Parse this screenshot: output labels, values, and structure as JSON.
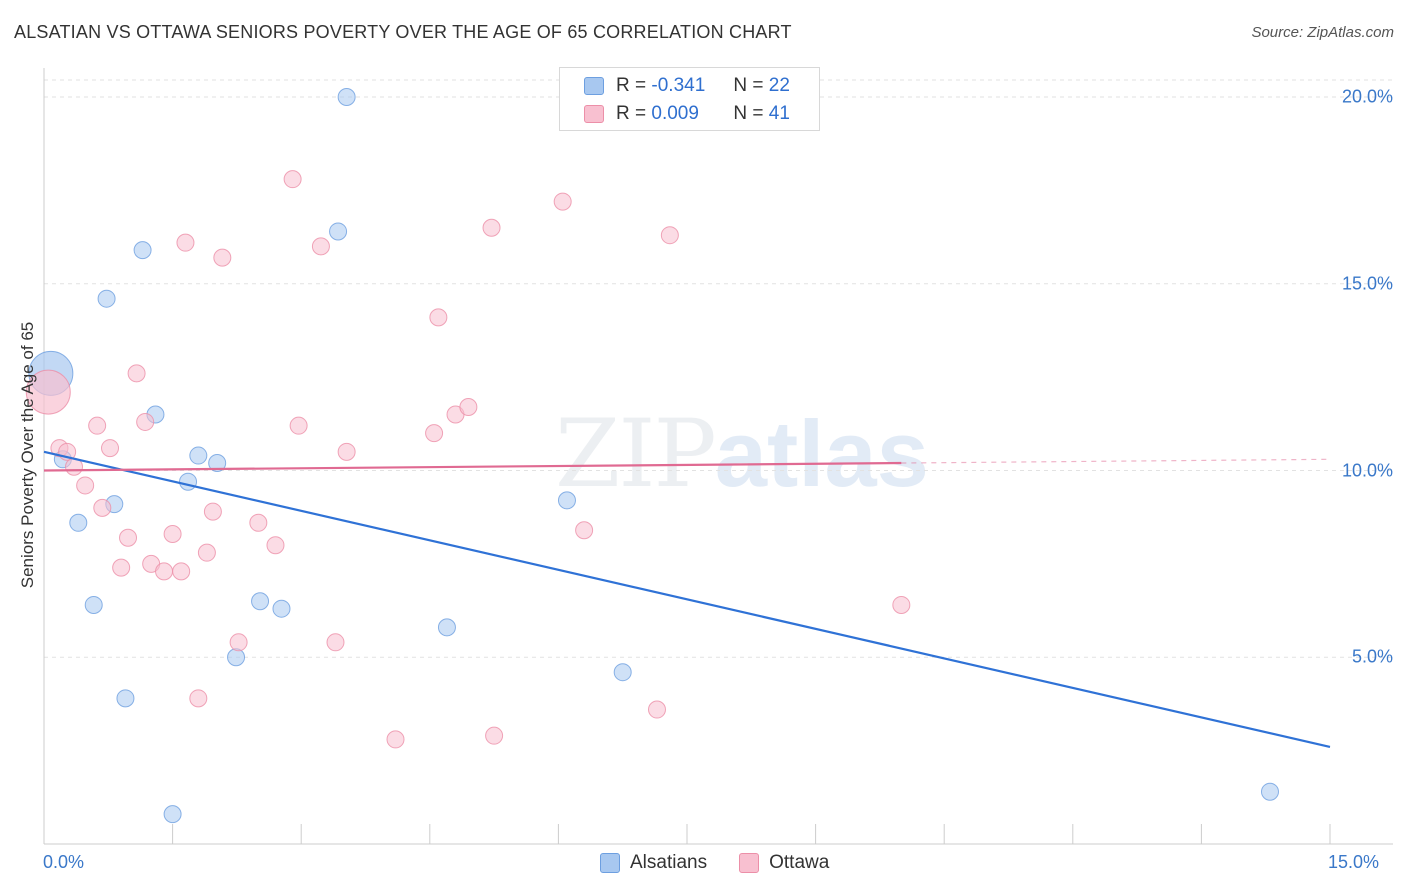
{
  "header": {
    "title": "ALSATIAN VS OTTAWA SENIORS POVERTY OVER THE AGE OF 65 CORRELATION CHART",
    "source": "Source: ZipAtlas.com"
  },
  "watermark": {
    "part1": "ZIP",
    "part2": "atlas"
  },
  "legend": {
    "rows": [
      {
        "r_label": "R = ",
        "r_value": "-0.341",
        "n_label": "N = ",
        "n_value": "22",
        "color": "#a8c8f0",
        "border": "#6d9fe0"
      },
      {
        "r_label": "R = ",
        "r_value": "0.009",
        "n_label": "N = ",
        "n_value": "41",
        "color": "#f8c0d0",
        "border": "#ec8fa8"
      }
    ]
  },
  "chart_data": {
    "type": "scatter",
    "title": "ALSATIAN VS OTTAWA SENIORS POVERTY OVER THE AGE OF 65 CORRELATION CHART",
    "xlabel": "",
    "ylabel": "Seniors Poverty Over the Age of 65",
    "xlim": [
      0,
      15
    ],
    "ylim": [
      0,
      20
    ],
    "x_tick_labels": [
      "0.0%",
      "15.0%"
    ],
    "y_ticks": [
      {
        "value": 5,
        "label": "5.0%"
      },
      {
        "value": 10,
        "label": "10.0%"
      },
      {
        "value": 15,
        "label": "15.0%"
      },
      {
        "value": 20,
        "label": "20.0%"
      }
    ],
    "series": [
      {
        "name": "Alsatians",
        "color": "#a8c8f0",
        "stroke": "#6d9fe0",
        "line_color": "#2f72d6",
        "trend": {
          "x0": 0.0,
          "y0": 10.5,
          "x1": 15.0,
          "y1": 2.6,
          "dashed_from": null
        },
        "points": [
          {
            "x": 0.08,
            "y": 12.6,
            "big": true
          },
          {
            "x": 0.22,
            "y": 10.3
          },
          {
            "x": 0.4,
            "y": 8.6
          },
          {
            "x": 0.58,
            "y": 6.4
          },
          {
            "x": 0.73,
            "y": 14.6
          },
          {
            "x": 0.82,
            "y": 9.1
          },
          {
            "x": 0.95,
            "y": 3.9
          },
          {
            "x": 1.15,
            "y": 15.9
          },
          {
            "x": 1.3,
            "y": 11.5
          },
          {
            "x": 1.5,
            "y": 0.8
          },
          {
            "x": 1.68,
            "y": 9.7
          },
          {
            "x": 1.8,
            "y": 10.4
          },
          {
            "x": 2.02,
            "y": 10.2
          },
          {
            "x": 2.24,
            "y": 5.0
          },
          {
            "x": 2.52,
            "y": 6.5
          },
          {
            "x": 2.77,
            "y": 6.3
          },
          {
            "x": 3.43,
            "y": 16.4
          },
          {
            "x": 3.53,
            "y": 20.0
          },
          {
            "x": 4.7,
            "y": 5.8
          },
          {
            "x": 6.1,
            "y": 9.2
          },
          {
            "x": 6.75,
            "y": 4.6
          },
          {
            "x": 14.3,
            "y": 1.4
          }
        ]
      },
      {
        "name": "Ottawa",
        "color": "#f8c0d0",
        "stroke": "#ec8fa8",
        "line_color": "#e06a92",
        "trend": {
          "x0": 0.0,
          "y0": 10.0,
          "x1": 15.0,
          "y1": 10.3,
          "dashed_from": 10.0
        },
        "points": [
          {
            "x": 0.05,
            "y": 12.1,
            "big": true
          },
          {
            "x": 0.18,
            "y": 10.6
          },
          {
            "x": 0.27,
            "y": 10.5
          },
          {
            "x": 0.35,
            "y": 10.1
          },
          {
            "x": 0.48,
            "y": 9.6
          },
          {
            "x": 0.62,
            "y": 11.2
          },
          {
            "x": 0.68,
            "y": 9.0
          },
          {
            "x": 0.77,
            "y": 10.6
          },
          {
            "x": 0.9,
            "y": 7.4
          },
          {
            "x": 0.98,
            "y": 8.2
          },
          {
            "x": 1.08,
            "y": 12.6
          },
          {
            "x": 1.18,
            "y": 11.3
          },
          {
            "x": 1.25,
            "y": 7.5
          },
          {
            "x": 1.4,
            "y": 7.3
          },
          {
            "x": 1.5,
            "y": 8.3
          },
          {
            "x": 1.6,
            "y": 7.3
          },
          {
            "x": 1.65,
            "y": 16.1
          },
          {
            "x": 1.8,
            "y": 3.9
          },
          {
            "x": 1.9,
            "y": 7.8
          },
          {
            "x": 1.97,
            "y": 8.9
          },
          {
            "x": 2.08,
            "y": 15.7
          },
          {
            "x": 2.27,
            "y": 5.4
          },
          {
            "x": 2.5,
            "y": 8.6
          },
          {
            "x": 2.7,
            "y": 8.0
          },
          {
            "x": 2.9,
            "y": 17.8
          },
          {
            "x": 2.97,
            "y": 11.2
          },
          {
            "x": 3.23,
            "y": 16.0
          },
          {
            "x": 3.4,
            "y": 5.4
          },
          {
            "x": 3.53,
            "y": 10.5
          },
          {
            "x": 4.1,
            "y": 2.8
          },
          {
            "x": 4.55,
            "y": 11.0
          },
          {
            "x": 4.6,
            "y": 14.1
          },
          {
            "x": 4.8,
            "y": 11.5
          },
          {
            "x": 4.95,
            "y": 11.7
          },
          {
            "x": 5.22,
            "y": 16.5
          },
          {
            "x": 5.25,
            "y": 2.9
          },
          {
            "x": 6.05,
            "y": 17.2
          },
          {
            "x": 6.3,
            "y": 8.4
          },
          {
            "x": 7.15,
            "y": 3.6
          },
          {
            "x": 7.3,
            "y": 16.3
          },
          {
            "x": 10.0,
            "y": 6.4
          }
        ]
      }
    ],
    "legend_position": "top-center"
  }
}
